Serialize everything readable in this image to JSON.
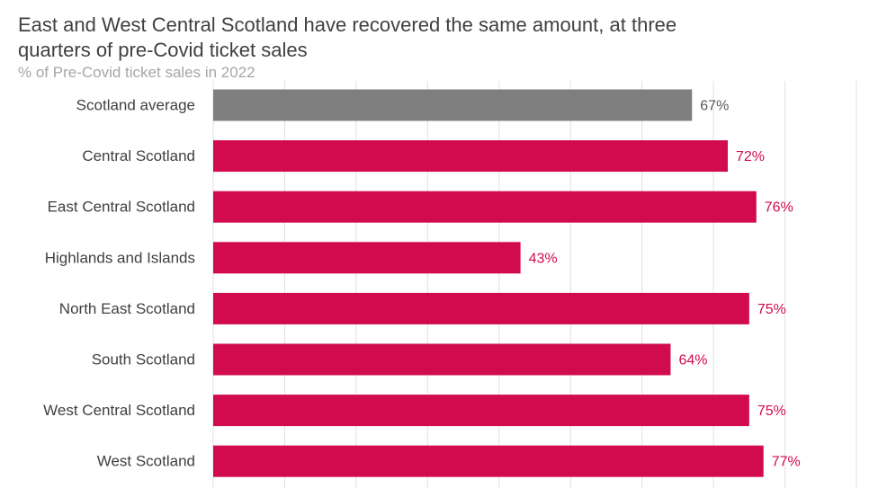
{
  "header": {
    "title": "East and West Central Scotland have recovered the same amount, at three quarters of pre-Covid ticket sales",
    "subtitle": "% of Pre-Covid ticket sales in 2022"
  },
  "colors": {
    "average_bar": "#7f7f7f",
    "average_label": "#595959",
    "region_bar": "#d20a4e",
    "region_label": "#d20a4e",
    "gridline": "#e0e0e0"
  },
  "chart_data": {
    "type": "bar",
    "orientation": "horizontal",
    "title": "East and West Central Scotland have recovered the same amount, at three quarters of pre-Covid ticket sales",
    "subtitle": "% of Pre-Covid ticket sales in 2022",
    "categories": [
      "Scotland average",
      "Central Scotland",
      "East Central Scotland",
      "Highlands and Islands",
      "North East Scotland",
      "South Scotland",
      "West Central Scotland",
      "West Scotland"
    ],
    "values": [
      67,
      72,
      76,
      43,
      75,
      64,
      75,
      77
    ],
    "value_labels": [
      "67%",
      "72%",
      "76%",
      "43%",
      "75%",
      "64%",
      "75%",
      "77%"
    ],
    "highlight": [
      "average",
      "region",
      "region",
      "region",
      "region",
      "region",
      "region",
      "region"
    ],
    "xlim": [
      0,
      90
    ],
    "x_gridlines": [
      0,
      10,
      20,
      30,
      40,
      50,
      60,
      70,
      80,
      90
    ],
    "grid": true,
    "legend": false,
    "xlabel": "",
    "ylabel": ""
  }
}
